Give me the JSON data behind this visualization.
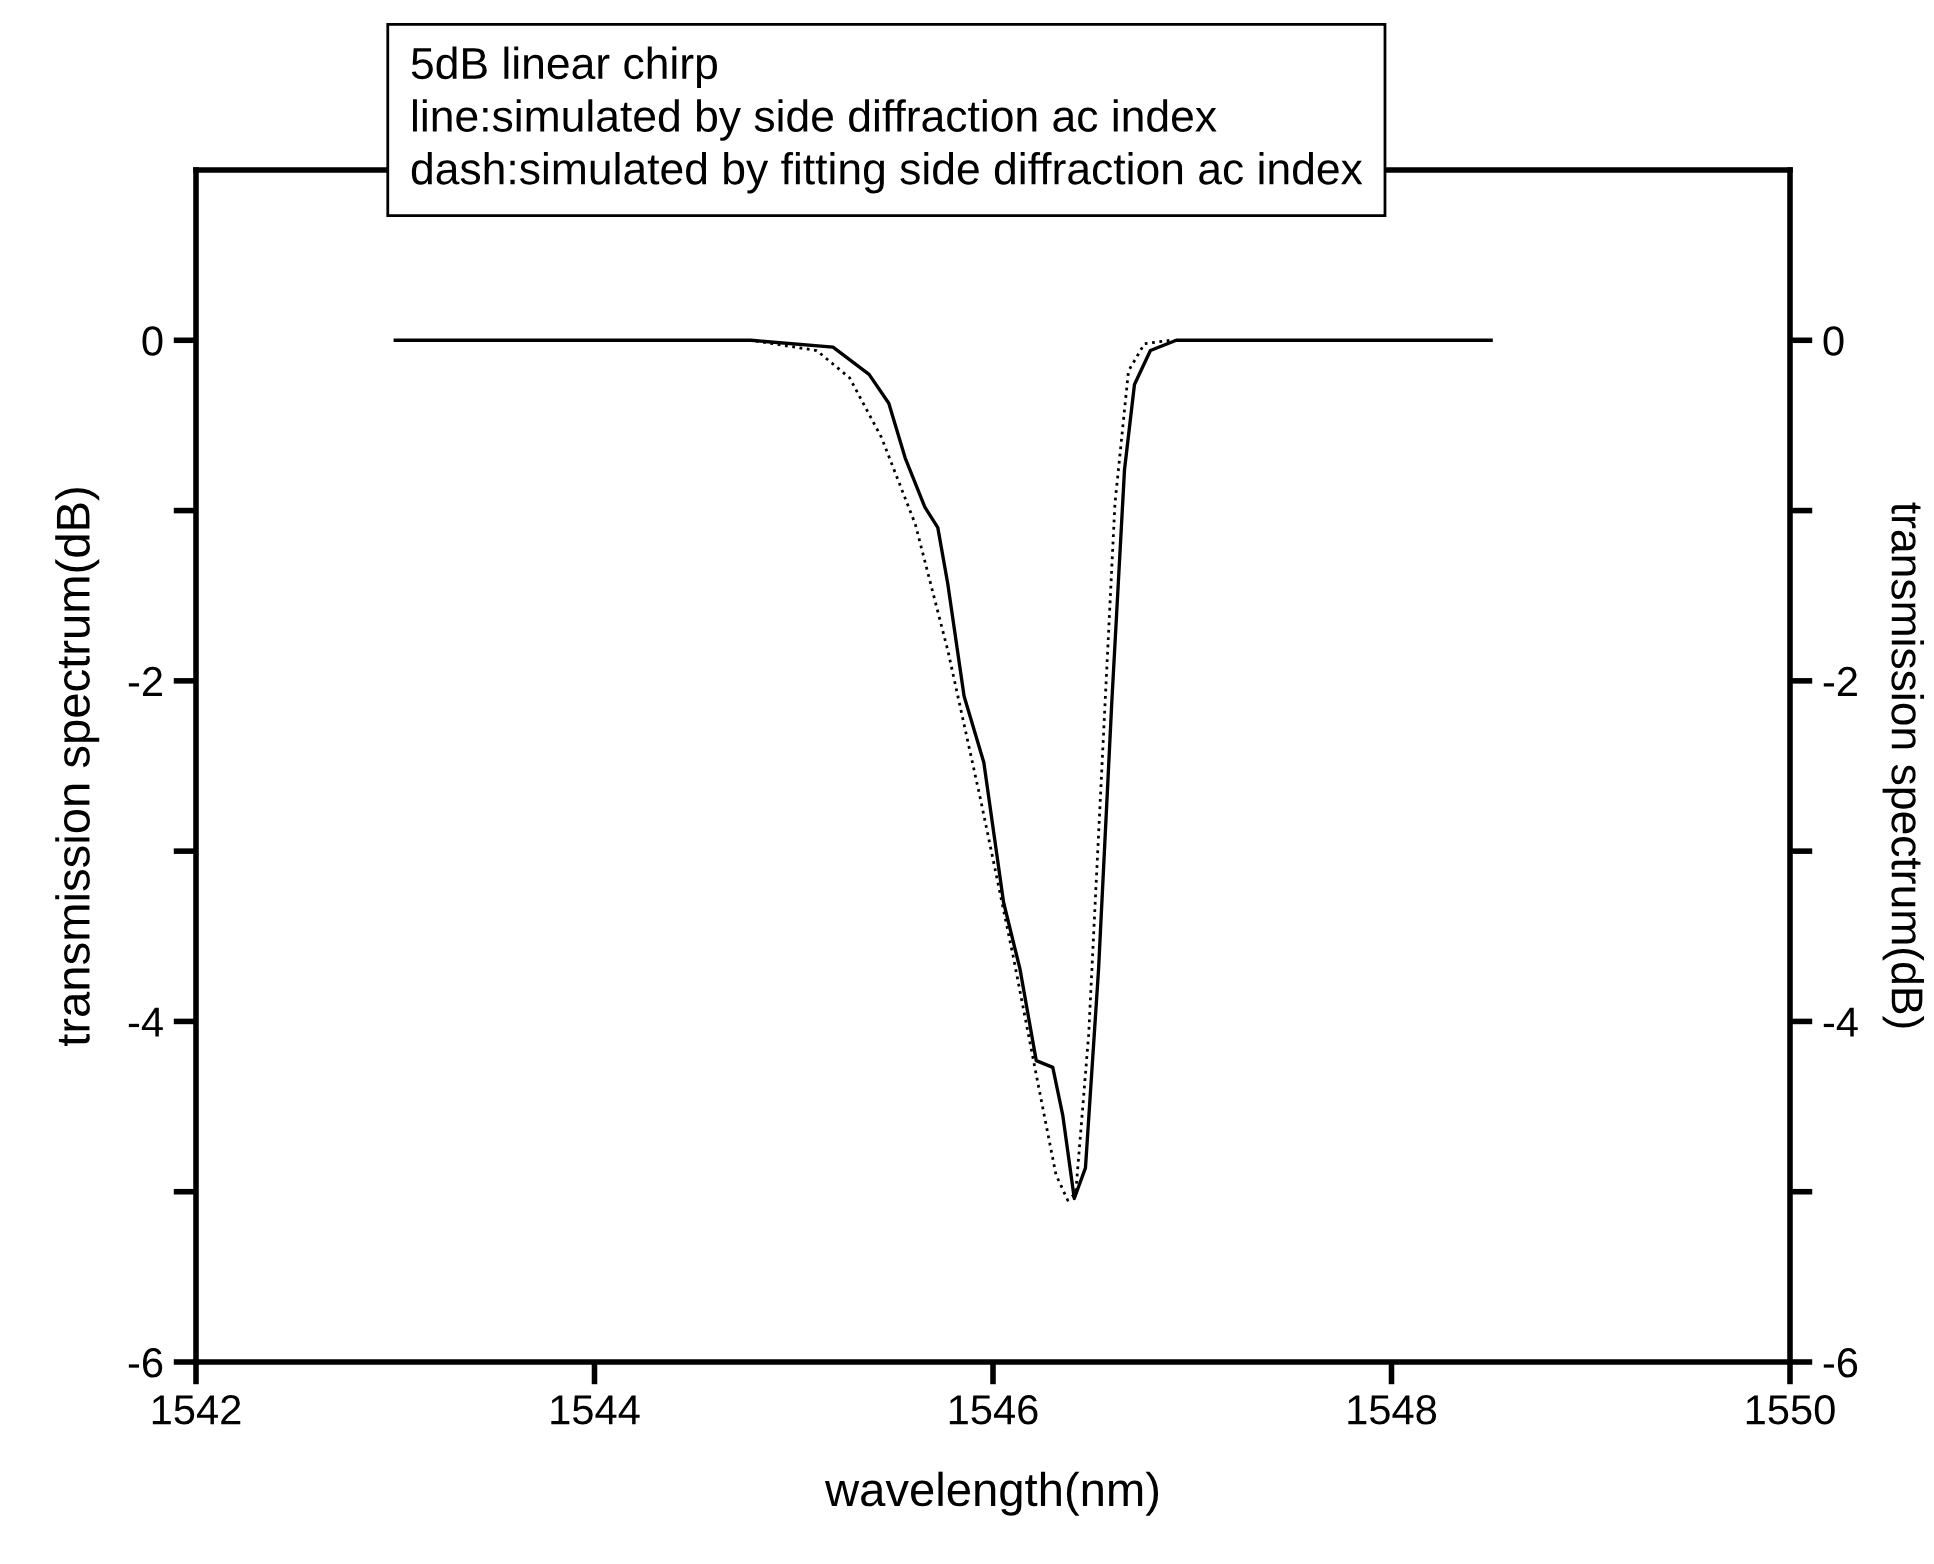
{
  "chart_data": {
    "type": "line",
    "xlabel": "wavelength(nm)",
    "ylabel": "transmission spectrum(dB)",
    "y2label": "transmission spectrum(dB)",
    "annotations": [
      "5dB linear chirp",
      "line:simulated by side diffraction ac index",
      "dash:simulated by fitting side diffraction ac index"
    ],
    "xlim": [
      1542,
      1550
    ],
    "xticks": [
      1542,
      1544,
      1546,
      1548,
      1550
    ],
    "ylim": [
      -6,
      1
    ],
    "yticks": [
      {
        "value": -6,
        "label": "-6"
      },
      {
        "value": -5,
        "label": null
      },
      {
        "value": -4,
        "label": "-4"
      },
      {
        "value": -3,
        "label": null
      },
      {
        "value": -2,
        "label": "-2"
      },
      {
        "value": -1,
        "label": null
      },
      0
    ],
    "y2lim": [
      -6,
      1
    ],
    "y2ticks": [
      {
        "value": -6,
        "label": "-6"
      },
      {
        "value": -5,
        "label": null
      },
      {
        "value": -4,
        "label": "-4"
      },
      {
        "value": -3,
        "label": null
      },
      {
        "value": -2,
        "label": "-2"
      },
      {
        "value": -1,
        "label": null
      },
      0
    ],
    "grid": false,
    "legend": false,
    "series": [
      {
        "color": "#000000",
        "line_style": "solid",
        "x": [
          1543,
          1544.785,
          1545.197,
          1545.378,
          1545.477,
          1545.559,
          1545.658,
          1545.723,
          1545.773,
          1545.855,
          1545.954,
          1546.053,
          1546.135,
          1546.217,
          1546.3,
          1546.35,
          1546.408,
          1546.464,
          1546.53,
          1546.596,
          1546.66,
          1546.71,
          1546.79,
          1546.92,
          1548.5
        ],
        "values": [
          0,
          0,
          -0.04,
          -0.2,
          -0.37,
          -0.69,
          -0.98,
          -1.1,
          -1.43,
          -2.09,
          -2.48,
          -3.3,
          -3.69,
          -4.23,
          -4.27,
          -4.55,
          -5.04,
          -4.86,
          -3.69,
          -2.13,
          -0.76,
          -0.26,
          -0.06,
          0,
          0
        ]
      },
      {
        "color": "#000000",
        "line_style": "dotted",
        "x": [
          1543,
          1544.785,
          1545.115,
          1545.28,
          1545.44,
          1545.61,
          1545.773,
          1545.94,
          1546.1,
          1546.23,
          1546.316,
          1546.375,
          1546.415,
          1546.48,
          1546.546,
          1546.612,
          1546.68,
          1546.76,
          1546.89,
          1548.5
        ],
        "values": [
          0,
          0,
          -0.06,
          -0.22,
          -0.57,
          -1.08,
          -1.82,
          -2.71,
          -3.61,
          -4.39,
          -4.9,
          -5.05,
          -5.01,
          -4.08,
          -2.52,
          -0.96,
          -0.18,
          -0.02,
          0,
          0
        ]
      }
    ]
  }
}
